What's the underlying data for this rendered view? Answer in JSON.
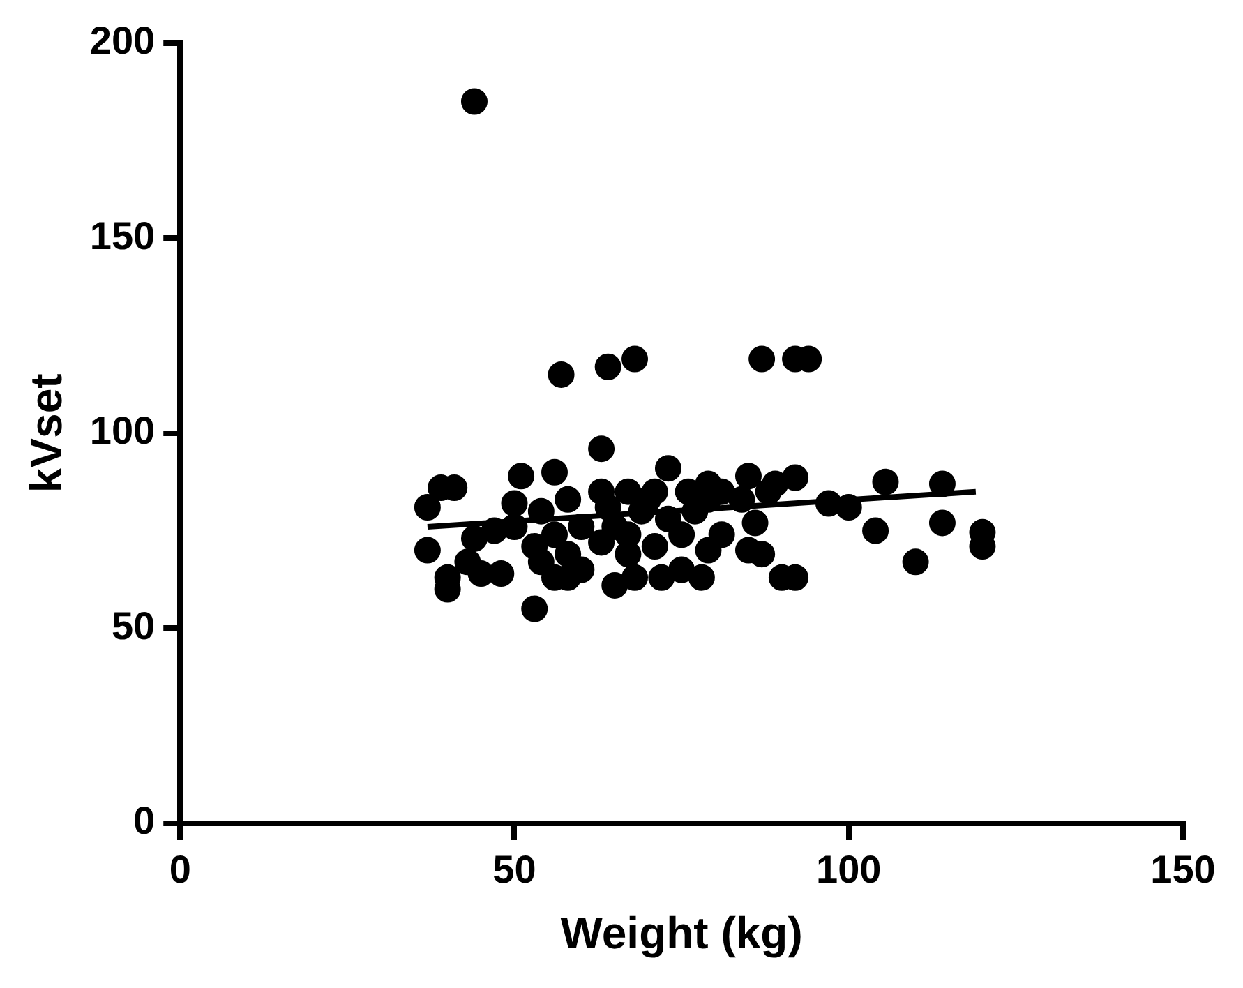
{
  "chart_data": {
    "type": "scatter",
    "xlabel": "Weight (kg)",
    "ylabel": "kVset",
    "xlim": [
      0,
      150
    ],
    "xticks": [
      0,
      50,
      100,
      150
    ],
    "ylim": [
      0,
      200
    ],
    "yticks": [
      0,
      50,
      100,
      150,
      200
    ],
    "grid": false,
    "legend": false,
    "series": [
      {
        "color": "#000000",
        "marker": "circle",
        "x": [
          44,
          57,
          64,
          68,
          87,
          92,
          94,
          63,
          92,
          89,
          97,
          100,
          105.5,
          114,
          104,
          110,
          114,
          120,
          120,
          90,
          92,
          37,
          37,
          39,
          41,
          40,
          40,
          43,
          45,
          48,
          44,
          47,
          50,
          51,
          53,
          53,
          56,
          56,
          58,
          60,
          65,
          67,
          68,
          72,
          73,
          71,
          75,
          78,
          79,
          81,
          85,
          86,
          85,
          79,
          67,
          63,
          58,
          54,
          60,
          65,
          69,
          73,
          77,
          79,
          84,
          56,
          63,
          67,
          71,
          58,
          54,
          50,
          64,
          70,
          76,
          81,
          88,
          87,
          75
        ],
        "values": [
          185,
          115,
          117,
          119,
          119,
          119,
          119,
          96,
          88.6,
          87,
          82,
          81,
          87.5,
          87,
          75,
          67,
          77,
          74.6,
          71,
          63,
          63,
          81,
          70,
          86,
          86,
          60,
          63,
          67,
          64,
          64,
          73,
          75,
          82,
          89,
          71,
          55,
          90,
          63,
          63,
          65,
          61,
          69,
          63,
          63,
          91,
          85,
          74,
          63,
          70,
          74,
          70,
          77,
          89,
          87,
          85,
          85,
          83,
          80,
          76,
          76,
          80,
          78,
          80,
          83,
          83,
          74,
          72,
          74,
          71,
          69,
          67,
          76,
          81,
          83,
          85,
          85,
          85,
          69,
          65
        ]
      },
      {
        "type": "line",
        "color": "#000000",
        "x": [
          37,
          119
        ],
        "values": [
          76,
          85
        ]
      }
    ]
  }
}
